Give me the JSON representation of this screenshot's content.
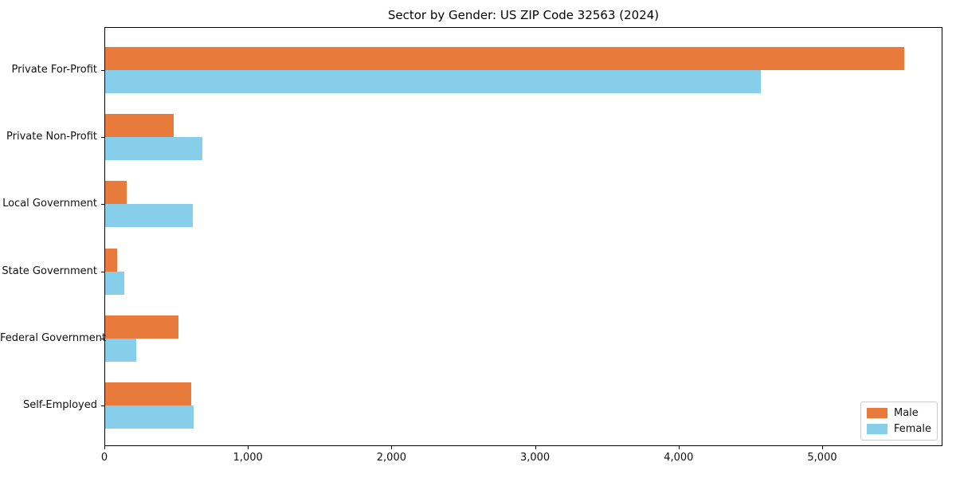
{
  "chart_data": {
    "type": "bar",
    "orientation": "horizontal",
    "title": "Sector by Gender: US ZIP Code 32563 (2024)",
    "categories": [
      "Private For-Profit",
      "Private Non-Profit",
      "Local Government",
      "State Government",
      "Federal Government",
      "Self-Employed"
    ],
    "series": [
      {
        "name": "Male",
        "color": "#e87a3c",
        "values": [
          5570,
          485,
          155,
          90,
          515,
          605
        ]
      },
      {
        "name": "Female",
        "color": "#87ceeb",
        "values": [
          4570,
          685,
          615,
          140,
          220,
          620
        ]
      }
    ],
    "xlabel": "",
    "ylabel": "",
    "xlim": [
      0,
      5838
    ],
    "xticks": [
      0,
      1000,
      2000,
      3000,
      4000,
      5000
    ],
    "xtick_labels": [
      "0",
      "1,000",
      "2,000",
      "3,000",
      "4,000",
      "5,000"
    ],
    "grid": false,
    "legend_position": "lower right",
    "frame_color": "#000000"
  }
}
